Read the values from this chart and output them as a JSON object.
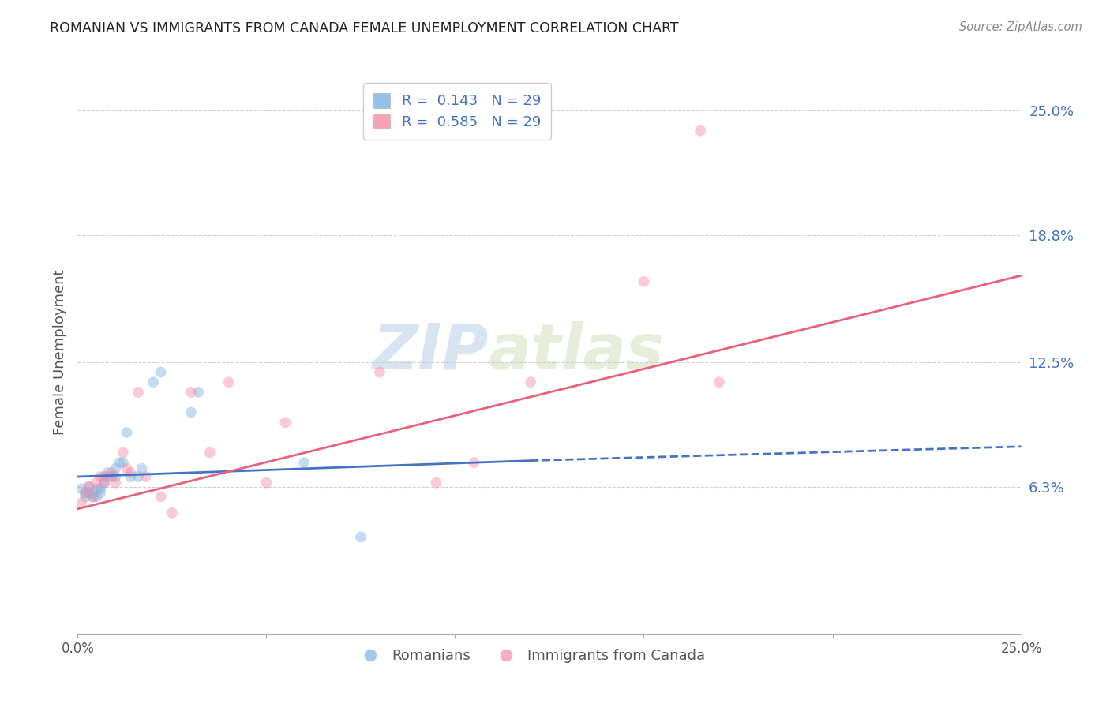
{
  "title": "ROMANIAN VS IMMIGRANTS FROM CANADA FEMALE UNEMPLOYMENT CORRELATION CHART",
  "source": "Source: ZipAtlas.com",
  "ylabel": "Female Unemployment",
  "ytick_labels": [
    "6.3%",
    "12.5%",
    "18.8%",
    "25.0%"
  ],
  "ytick_values": [
    0.063,
    0.125,
    0.188,
    0.25
  ],
  "xmin": 0.0,
  "xmax": 0.25,
  "ymin": -0.01,
  "ymax": 0.27,
  "legend_entries": [
    {
      "label": "R =  0.143   N = 29",
      "color": "#7ab3e0"
    },
    {
      "label": "R =  0.585   N = 29",
      "color": "#f48ca7"
    }
  ],
  "series_romanians": {
    "name": "Romanians",
    "color": "#7ab3e0",
    "x": [
      0.001,
      0.002,
      0.002,
      0.003,
      0.003,
      0.004,
      0.004,
      0.005,
      0.005,
      0.006,
      0.006,
      0.007,
      0.007,
      0.008,
      0.009,
      0.01,
      0.01,
      0.011,
      0.012,
      0.013,
      0.014,
      0.016,
      0.017,
      0.02,
      0.022,
      0.03,
      0.032,
      0.06,
      0.075
    ],
    "y": [
      0.062,
      0.06,
      0.058,
      0.063,
      0.06,
      0.06,
      0.058,
      0.062,
      0.058,
      0.06,
      0.062,
      0.065,
      0.068,
      0.07,
      0.068,
      0.068,
      0.072,
      0.075,
      0.075,
      0.09,
      0.068,
      0.068,
      0.072,
      0.115,
      0.12,
      0.1,
      0.11,
      0.075,
      0.038
    ]
  },
  "series_canada": {
    "name": "Immigrants from Canada",
    "color": "#f48ca7",
    "x": [
      0.001,
      0.002,
      0.003,
      0.004,
      0.005,
      0.006,
      0.007,
      0.008,
      0.009,
      0.01,
      0.012,
      0.013,
      0.014,
      0.016,
      0.018,
      0.022,
      0.025,
      0.03,
      0.035,
      0.04,
      0.05,
      0.055,
      0.08,
      0.095,
      0.105,
      0.12,
      0.15,
      0.165,
      0.17
    ],
    "y": [
      0.055,
      0.06,
      0.063,
      0.058,
      0.065,
      0.068,
      0.065,
      0.068,
      0.07,
      0.065,
      0.08,
      0.072,
      0.07,
      0.11,
      0.068,
      0.058,
      0.05,
      0.11,
      0.08,
      0.115,
      0.065,
      0.095,
      0.12,
      0.065,
      0.075,
      0.115,
      0.165,
      0.24,
      0.115
    ]
  },
  "trendline_blue_solid": {
    "x_start": 0.0,
    "y_start": 0.068,
    "x_end": 0.12,
    "y_end": 0.076,
    "color": "#4472c4",
    "linestyle": "solid",
    "linewidth": 2.0
  },
  "trendline_blue_dashed": {
    "x_start": 0.12,
    "y_start": 0.076,
    "x_end": 0.25,
    "y_end": 0.083,
    "color": "#4472c4",
    "linestyle": "dashed",
    "linewidth": 2.0
  },
  "trendline_pink": {
    "x_start": 0.0,
    "y_start": 0.052,
    "x_end": 0.25,
    "y_end": 0.168,
    "color": "#e8607a",
    "linestyle": "solid",
    "linewidth": 2.0
  },
  "watermark_zip": "ZIP",
  "watermark_atlas": "atlas",
  "background_color": "#ffffff",
  "scatter_size": 100,
  "scatter_alpha": 0.45,
  "grid_color": "#d0d0d0",
  "grid_linestyle": "dashed",
  "right_ytick_color": "#4472c4"
}
